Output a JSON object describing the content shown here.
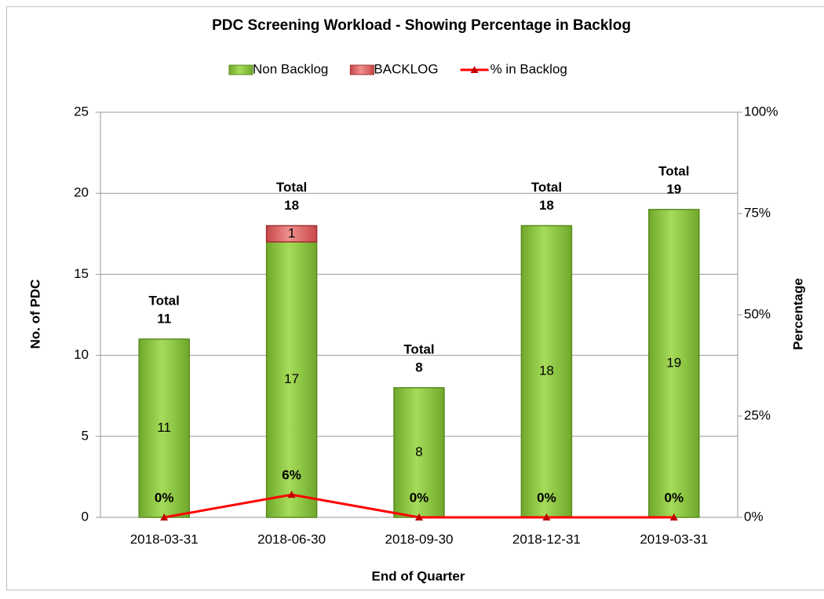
{
  "chart_data": {
    "type": "bar",
    "title": "PDC Screening Workload - Showing Percentage in Backlog",
    "x_label": "End of Quarter",
    "y_label": "No. of PDC",
    "y2_label": "Percentage",
    "categories": [
      "2018-03-31",
      "2018-06-30",
      "2018-09-30",
      "2018-12-31",
      "2019-03-31"
    ],
    "series": [
      {
        "name": "Non Backlog",
        "color": "#8cc83c",
        "values": [
          11,
          17,
          8,
          18,
          19
        ]
      },
      {
        "name": "BACKLOG",
        "color": "#e06666",
        "values": [
          0,
          1,
          0,
          0,
          0
        ]
      },
      {
        "name": "% in Backlog",
        "color": "#ff0000",
        "type": "line",
        "axis": "y2",
        "values": [
          0,
          5.6,
          0,
          0,
          0
        ],
        "value_labels": [
          "0%",
          "6%",
          "0%",
          "0%",
          "0%"
        ]
      }
    ],
    "total_label": "Total",
    "totals": [
      11,
      18,
      8,
      18,
      19
    ],
    "stacked": true,
    "ylim": [
      0,
      25
    ],
    "yticks": [
      0,
      5,
      10,
      15,
      20,
      25
    ],
    "y2lim": [
      0,
      100
    ],
    "y2ticks": [
      {
        "value": 0,
        "label": "0%"
      },
      {
        "value": 25,
        "label": "25%"
      },
      {
        "value": 50,
        "label": "50%"
      },
      {
        "value": 75,
        "label": "75%"
      },
      {
        "value": 100,
        "label": "100%"
      }
    ],
    "grid": true,
    "legend": "top"
  }
}
